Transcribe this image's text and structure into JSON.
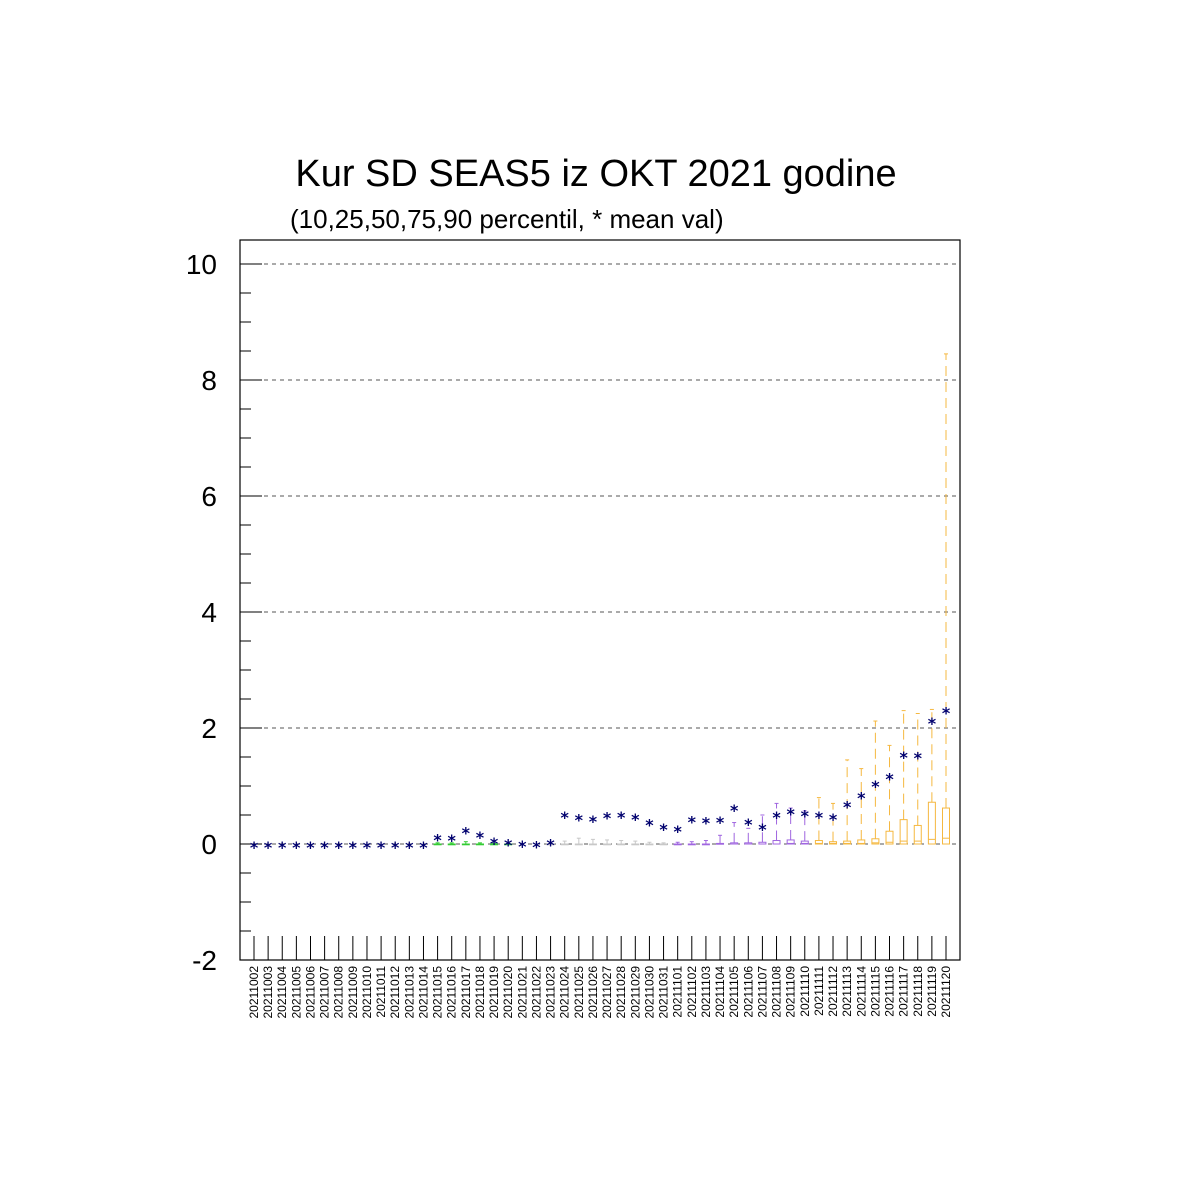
{
  "chart_data": {
    "type": "box",
    "title": "Kur SD SEAS5 iz OKT 2021 godine",
    "subtitle": "(10,25,50,75,90 percentil, * mean val)",
    "xlabel": "",
    "ylabel": "",
    "ylim": [
      -2,
      10
    ],
    "yticks": [
      -2,
      0,
      2,
      4,
      6,
      8,
      10
    ],
    "ytick_labels": [
      "-2",
      "0",
      "2",
      "4",
      "6",
      "8",
      "10"
    ],
    "grid": "horizontal dashed",
    "colors": {
      "mean_marker": "#00006e",
      "frame": "#000000",
      "grid": "#555555",
      "green": "#33cc33",
      "gray": "#c8c8c8",
      "purple": "#a066e0",
      "orange": "#f5b840"
    },
    "categories": [
      "20211002",
      "20211003",
      "20211004",
      "20211005",
      "20211006",
      "20211007",
      "20211008",
      "20211009",
      "20211010",
      "20211011",
      "20211012",
      "20211013",
      "20211014",
      "20211015",
      "20211016",
      "20211017",
      "20211018",
      "20211019",
      "20211020",
      "20211021",
      "20211022",
      "20211023",
      "20211024",
      "20211025",
      "20211026",
      "20211027",
      "20211028",
      "20211029",
      "20211030",
      "20211031",
      "20211101",
      "20211102",
      "20211103",
      "20211104",
      "20211105",
      "20211106",
      "20211107",
      "20211108",
      "20211109",
      "20211110",
      "20211111",
      "20211112",
      "20211113",
      "20211114",
      "20211115",
      "20211116",
      "20211117",
      "20211118",
      "20211119",
      "20211120"
    ],
    "mean": [
      0,
      0,
      0,
      0,
      0,
      0,
      0,
      0,
      0,
      0,
      0,
      0,
      0,
      0.13,
      0.12,
      0.25,
      0.17,
      0.07,
      0.04,
      0.02,
      0.01,
      0.04,
      0.52,
      0.47,
      0.45,
      0.51,
      0.52,
      0.48,
      0.39,
      0.31,
      0.28,
      0.44,
      0.42,
      0.43,
      0.64,
      0.4,
      0.31,
      0.52,
      0.58,
      0.54,
      0.52,
      0.48,
      0.7,
      0.85,
      1.05,
      1.18,
      1.55,
      1.54,
      2.14,
      2.32
    ],
    "p10": [
      0,
      0,
      0,
      0,
      0,
      0,
      0,
      0,
      0,
      0,
      0,
      0,
      0,
      0,
      0,
      0,
      0,
      0,
      0,
      0,
      0,
      0,
      0,
      0,
      0,
      0,
      0,
      0,
      0,
      0,
      0,
      0,
      0,
      0,
      0,
      0,
      0,
      0,
      0,
      0,
      0,
      0,
      0,
      0,
      0,
      0,
      0,
      0,
      0,
      0
    ],
    "p25": [
      0,
      0,
      0,
      0,
      0,
      0,
      0,
      0,
      0,
      0,
      0,
      0,
      0,
      0,
      0,
      0,
      0,
      0,
      0,
      0,
      0,
      0,
      0,
      0,
      0,
      0,
      0,
      0,
      0,
      0,
      0,
      0,
      0,
      0,
      0,
      0,
      0,
      0,
      0,
      0,
      0,
      0,
      0,
      0,
      0,
      0,
      0,
      0,
      0,
      0
    ],
    "p50": [
      0,
      0,
      0,
      0,
      0,
      0,
      0,
      0,
      0,
      0,
      0,
      0,
      0,
      0,
      0,
      0,
      0,
      0,
      0,
      0,
      0,
      0,
      0,
      0,
      0,
      0,
      0,
      0,
      0,
      0,
      0,
      0,
      0,
      0,
      0,
      0,
      0,
      0,
      0.01,
      0.01,
      0.01,
      0.01,
      0.01,
      0.01,
      0.02,
      0.03,
      0.05,
      0.05,
      0.08,
      0.1
    ],
    "p75": [
      0,
      0,
      0,
      0,
      0,
      0,
      0,
      0,
      0,
      0,
      0,
      0,
      0,
      0,
      0,
      0,
      0,
      0,
      0,
      0,
      0,
      0,
      0,
      0,
      0,
      0,
      0,
      0,
      0,
      0,
      0,
      0,
      0,
      0.01,
      0.02,
      0.02,
      0.03,
      0.06,
      0.07,
      0.05,
      0.06,
      0.04,
      0.05,
      0.07,
      0.09,
      0.22,
      0.42,
      0.32,
      0.72,
      0.62
    ],
    "p90": [
      0,
      0,
      0,
      0,
      0,
      0,
      0,
      0,
      0,
      0,
      0,
      0,
      0,
      0.02,
      0.02,
      0.04,
      0.02,
      0.01,
      0.01,
      0,
      0,
      0.01,
      0.05,
      0.1,
      0.08,
      0.07,
      0.06,
      0.05,
      0.03,
      0.02,
      0.03,
      0.04,
      0.06,
      0.15,
      0.37,
      0.27,
      0.5,
      0.7,
      0.62,
      0.57,
      0.8,
      0.7,
      1.45,
      1.3,
      2.12,
      1.7,
      2.3,
      2.25,
      2.32,
      8.45
    ],
    "box_color_group": [
      "none",
      "none",
      "none",
      "none",
      "none",
      "none",
      "none",
      "none",
      "none",
      "none",
      "none",
      "none",
      "none",
      "green",
      "green",
      "green",
      "green",
      "green",
      "green",
      "none",
      "none",
      "gray",
      "gray",
      "gray",
      "gray",
      "gray",
      "gray",
      "gray",
      "gray",
      "gray",
      "purple",
      "purple",
      "purple",
      "purple",
      "purple",
      "purple",
      "purple",
      "purple",
      "purple",
      "purple",
      "orange",
      "orange",
      "orange",
      "orange",
      "orange",
      "orange",
      "orange",
      "orange",
      "orange",
      "orange"
    ]
  }
}
